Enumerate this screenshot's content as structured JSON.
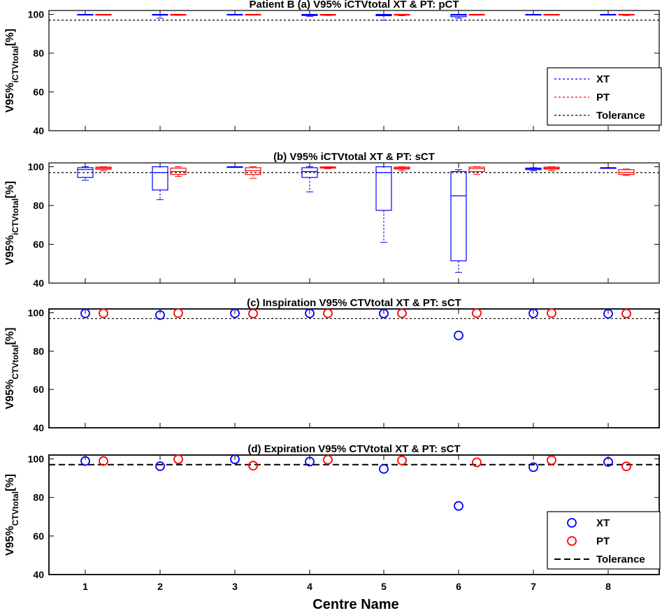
{
  "figure": {
    "xlabel": "Centre Name",
    "ylabel_main": "V95%",
    "colors": {
      "XT": "#0000ff",
      "PT": "#ff0000",
      "Tolerance": "#000000"
    }
  },
  "chart_data": [
    {
      "type": "box",
      "title": "Patient B  (a) V95% iCTVtotal XT & PT: pCT",
      "ylabel_sub": "iCTVtotal",
      "ylabel_unit": "[%]",
      "ylim": [
        40,
        102
      ],
      "yticks": [
        40,
        60,
        80,
        100
      ],
      "categories": [
        "1",
        "2",
        "3",
        "4",
        "5",
        "6",
        "7",
        "8"
      ],
      "tolerance": 97,
      "legend": {
        "position": "bottom-right",
        "entries": [
          "XT",
          "PT",
          "Tolerance"
        ]
      },
      "series": [
        {
          "name": "XT",
          "boxes": [
            {
              "min": 99.8,
              "q1": 99.8,
              "median": 100,
              "q3": 100,
              "max": 100
            },
            {
              "min": 98,
              "q1": 99.6,
              "median": 99.8,
              "q3": 100,
              "max": 100
            },
            {
              "min": 100,
              "q1": 100,
              "median": 100,
              "q3": 100,
              "max": 100
            },
            {
              "min": 99,
              "q1": 99.4,
              "median": 99.7,
              "q3": 100,
              "max": 100
            },
            {
              "min": 97,
              "q1": 99.3,
              "median": 99.7,
              "q3": 100,
              "max": 100
            },
            {
              "min": 98,
              "q1": 98.8,
              "median": 99.6,
              "q3": 100,
              "max": 100
            },
            {
              "min": 99.9,
              "q1": 100,
              "median": 100,
              "q3": 100,
              "max": 100
            },
            {
              "min": 100,
              "q1": 100,
              "median": 100,
              "q3": 100,
              "max": 100
            }
          ]
        },
        {
          "name": "PT",
          "boxes": [
            {
              "min": 99.8,
              "q1": 99.9,
              "median": 100,
              "q3": 100,
              "max": 100
            },
            {
              "min": 99.5,
              "q1": 99.6,
              "median": 99.8,
              "q3": 100,
              "max": 100
            },
            {
              "min": 100,
              "q1": 100,
              "median": 100,
              "q3": 100,
              "max": 100
            },
            {
              "min": 99.4,
              "q1": 99.6,
              "median": 99.8,
              "q3": 100,
              "max": 100
            },
            {
              "min": 99.3,
              "q1": 99.6,
              "median": 99.8,
              "q3": 100,
              "max": 100
            },
            {
              "min": 99.6,
              "q1": 99.7,
              "median": 99.9,
              "q3": 100,
              "max": 100
            },
            {
              "min": 99.7,
              "q1": 99.8,
              "median": 99.9,
              "q3": 100,
              "max": 100
            },
            {
              "min": 99.4,
              "q1": 99.7,
              "median": 99.9,
              "q3": 100,
              "max": 100
            }
          ]
        }
      ]
    },
    {
      "type": "box",
      "title": "(b) V95% iCTVtotal XT & PT: sCT",
      "ylabel_sub": "iCTVtotal",
      "ylabel_unit": "[%]",
      "ylim": [
        40,
        102
      ],
      "yticks": [
        40,
        60,
        80,
        100
      ],
      "categories": [
        "1",
        "2",
        "3",
        "4",
        "5",
        "6",
        "7",
        "8"
      ],
      "tolerance": 97,
      "series": [
        {
          "name": "XT",
          "boxes": [
            {
              "min": 93,
              "q1": 94.5,
              "median": 98.5,
              "q3": 99.5,
              "max": 100
            },
            {
              "min": 83,
              "q1": 88,
              "median": 97,
              "q3": 100,
              "max": 100
            },
            {
              "min": 100,
              "q1": 100,
              "median": 100,
              "q3": 100,
              "max": 100
            },
            {
              "min": 87,
              "q1": 94.5,
              "median": 97.5,
              "q3": 99.5,
              "max": 100
            },
            {
              "min": 61,
              "q1": 77.5,
              "median": 97,
              "q3": 100,
              "max": 100
            },
            {
              "min": 45.5,
              "q1": 51.5,
              "median": 85,
              "q3": 97.5,
              "max": 98.5
            },
            {
              "min": 98,
              "q1": 98.5,
              "median": 99,
              "q3": 99.3,
              "max": 99.5
            },
            {
              "min": 99.5,
              "q1": 99.5,
              "median": 99.5,
              "q3": 99.5,
              "max": 99.5
            }
          ]
        },
        {
          "name": "PT",
          "boxes": [
            {
              "min": 98,
              "q1": 98.7,
              "median": 99.3,
              "q3": 99.8,
              "max": 100
            },
            {
              "min": 95,
              "q1": 96,
              "median": 97.5,
              "q3": 99.3,
              "max": 100
            },
            {
              "min": 94,
              "q1": 96,
              "median": 98,
              "q3": 99.5,
              "max": 100
            },
            {
              "min": 99,
              "q1": 99.3,
              "median": 99.6,
              "q3": 99.9,
              "max": 100
            },
            {
              "min": 98,
              "q1": 98.8,
              "median": 99.3,
              "q3": 99.8,
              "max": 100
            },
            {
              "min": 96,
              "q1": 97.5,
              "median": 99,
              "q3": 99.8,
              "max": 100
            },
            {
              "min": 98,
              "q1": 98.8,
              "median": 99.3,
              "q3": 99.8,
              "max": 100
            },
            {
              "min": 95.5,
              "q1": 96,
              "median": 97,
              "q3": 98.5,
              "max": 98.8
            }
          ]
        }
      ]
    },
    {
      "type": "scatter",
      "title": "(c) Inspiration V95% CTVtotal XT & PT: sCT",
      "ylabel_sub": "CTVtotal",
      "ylabel_unit": "[%]",
      "ylim": [
        40,
        102
      ],
      "yticks": [
        40,
        60,
        80,
        100
      ],
      "categories": [
        "1",
        "2",
        "3",
        "4",
        "5",
        "6",
        "7",
        "8"
      ],
      "tolerance": 97,
      "series": [
        {
          "name": "XT",
          "values": [
            99.7,
            98.8,
            99.7,
            99.7,
            99.6,
            88.2,
            99.7,
            99.5
          ]
        },
        {
          "name": "PT",
          "values": [
            99.7,
            99.8,
            99.6,
            99.7,
            99.7,
            99.8,
            99.8,
            99.6
          ]
        }
      ]
    },
    {
      "type": "scatter",
      "title": "(d) Expiration V95% CTVtotal XT & PT: sCT",
      "ylabel_sub": "CTVtotal",
      "ylabel_unit": "[%]",
      "ylim": [
        40,
        102
      ],
      "yticks": [
        40,
        60,
        80,
        100
      ],
      "categories": [
        "1",
        "2",
        "3",
        "4",
        "5",
        "6",
        "7",
        "8"
      ],
      "tolerance": 97,
      "legend": {
        "position": "bottom-right",
        "entries": [
          "XT",
          "PT",
          "Tolerance"
        ]
      },
      "series": [
        {
          "name": "XT",
          "values": [
            98.9,
            96.2,
            99.8,
            98.6,
            94.8,
            75.6,
            95.7,
            98.4
          ]
        },
        {
          "name": "PT",
          "values": [
            98.9,
            99.8,
            96.5,
            99.6,
            99.2,
            98.2,
            99.3,
            96.1
          ]
        }
      ]
    }
  ]
}
